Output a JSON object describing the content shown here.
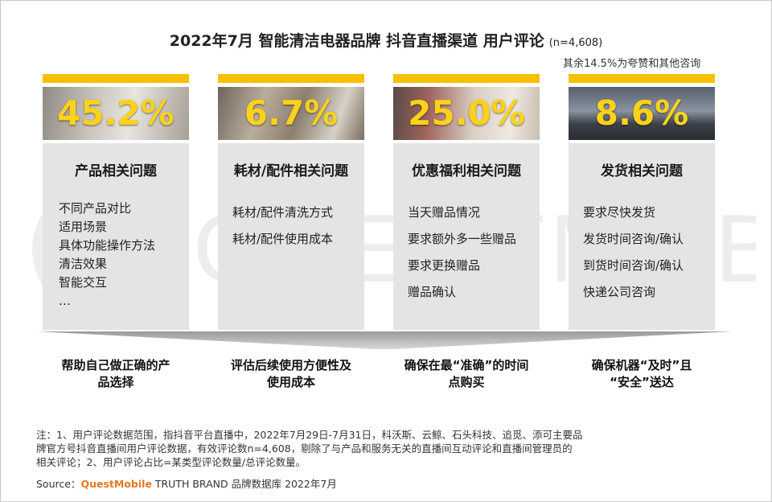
{
  "header": {
    "title": "2022年7月 智能清洁电器品牌 抖音直播渠道 用户评论",
    "sample": "(n=4,608)",
    "note": "其余14.5%为夸赞和其他咨询"
  },
  "watermark": "QUESTMOBILE",
  "cards": [
    {
      "percent": "45.2%",
      "category": "产品相关问题",
      "items": [
        "不同产品对比",
        "适用场景",
        "具体功能操作方法",
        "清洁效果",
        "智能交互",
        "…"
      ]
    },
    {
      "percent": "6.7%",
      "category": "耗材/配件相关问题",
      "items": [
        "耗材/配件清洗方式",
        "耗材/配件使用成本"
      ]
    },
    {
      "percent": "25.0%",
      "category": "优惠福利相关问题",
      "items": [
        "当天赠品情况",
        "要求额外多一些赠品",
        "要求更换赠品",
        "赠品确认"
      ]
    },
    {
      "percent": "8.6%",
      "category": "发货相关问题",
      "items": [
        "要求尽快发货",
        "发货时间咨询/确认",
        "到货时间咨询/确认",
        "快递公司咨询"
      ]
    }
  ],
  "outcomes": [
    {
      "line1": "帮助自己做正确的产",
      "line2": "品选择"
    },
    {
      "line1": "评估后续使用方便性及",
      "line2": "使用成本"
    },
    {
      "line1": "确保在最“准确”的时间",
      "line2": "点购买"
    },
    {
      "line1": "确保机器“及时”且",
      "line2": "“安全”送达"
    }
  ],
  "footer": {
    "note_line1": "注：1、用户评论数据范围，指抖音平台直播中，2022年7月29日-7月31日，科沃斯、云鲸、石头科技、追觅、添可主要品",
    "note_line2": "牌官方号抖音直播间用户评论数据，有效评论数n=4,608，剔除了与产品和服务无关的直播间互动评论和直播间管理员的",
    "note_line3": "相关评论；2、用户评论占比=某类型评论数量/总评论数量。",
    "source_label": "Source：",
    "source_brand": "QuestMobile",
    "source_rest": " TRUTH BRAND 品牌数据库 2022年7月"
  },
  "colors": {
    "accent_yellow": "#f6c000",
    "percent_text": "#ffd21a",
    "card_bg": "#e4e4e4",
    "brand_orange": "#e87722"
  }
}
